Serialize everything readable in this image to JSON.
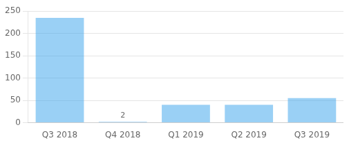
{
  "chart_data": {
    "type": "bar",
    "categories": [
      "Q3 2018",
      "Q4 2018",
      "Q1 2019",
      "Q2 2019",
      "Q3 2019"
    ],
    "values": [
      235,
      2,
      40,
      40,
      55
    ],
    "data_labels": true,
    "value_labels": [
      null,
      "2",
      null,
      null,
      null
    ],
    "ylim": [
      0,
      250
    ],
    "yticks": [
      0,
      50,
      100,
      150,
      200,
      250
    ],
    "grid": true
  }
}
